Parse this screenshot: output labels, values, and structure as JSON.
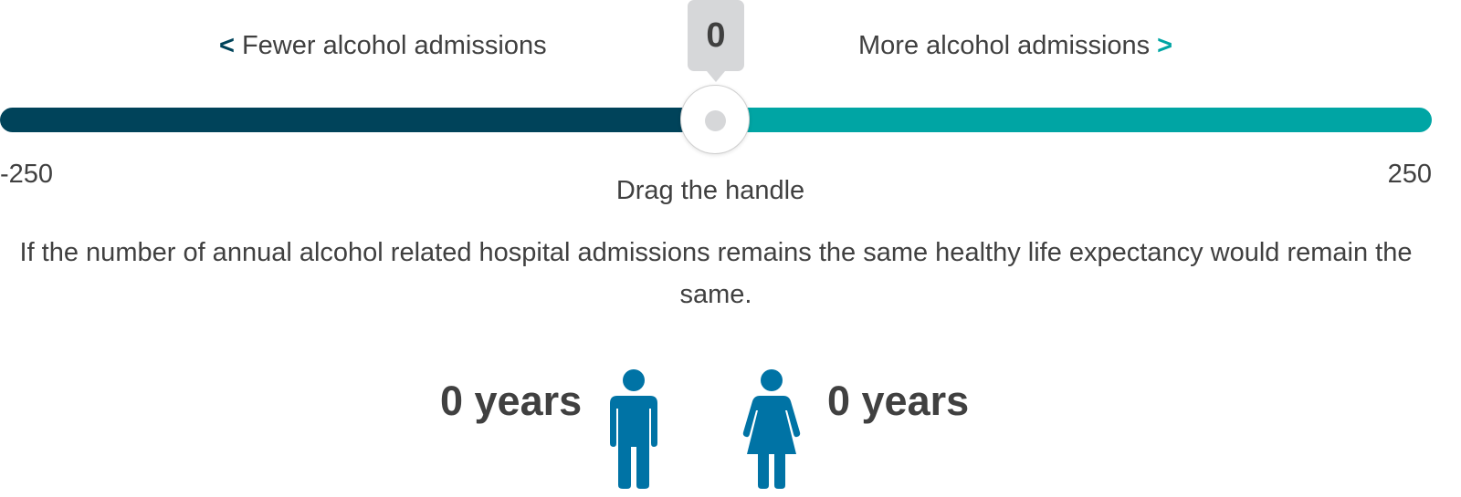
{
  "slider": {
    "fewer_label": "Fewer alcohol admissions",
    "more_label": "More alcohol admissions",
    "fewer_chevron": "<",
    "more_chevron": ">",
    "current_value": "0",
    "min_label": "-250",
    "max_label": "250",
    "min": -250,
    "max": 250,
    "value": 0,
    "hint": "Drag the handle"
  },
  "message": "If the number of annual alcohol related hospital admissions remains the same healthy life expectancy would remain the same.",
  "results": {
    "male_label": "0 years",
    "female_label": "0 years"
  },
  "icons": {
    "male": "male-person-icon",
    "female": "female-person-icon"
  },
  "colors": {
    "lower_track": "#00435a",
    "upper_track": "#00a5a4",
    "person_icon": "#0073a5",
    "tooltip_bg": "#d6d7d9",
    "text": "#404040"
  }
}
